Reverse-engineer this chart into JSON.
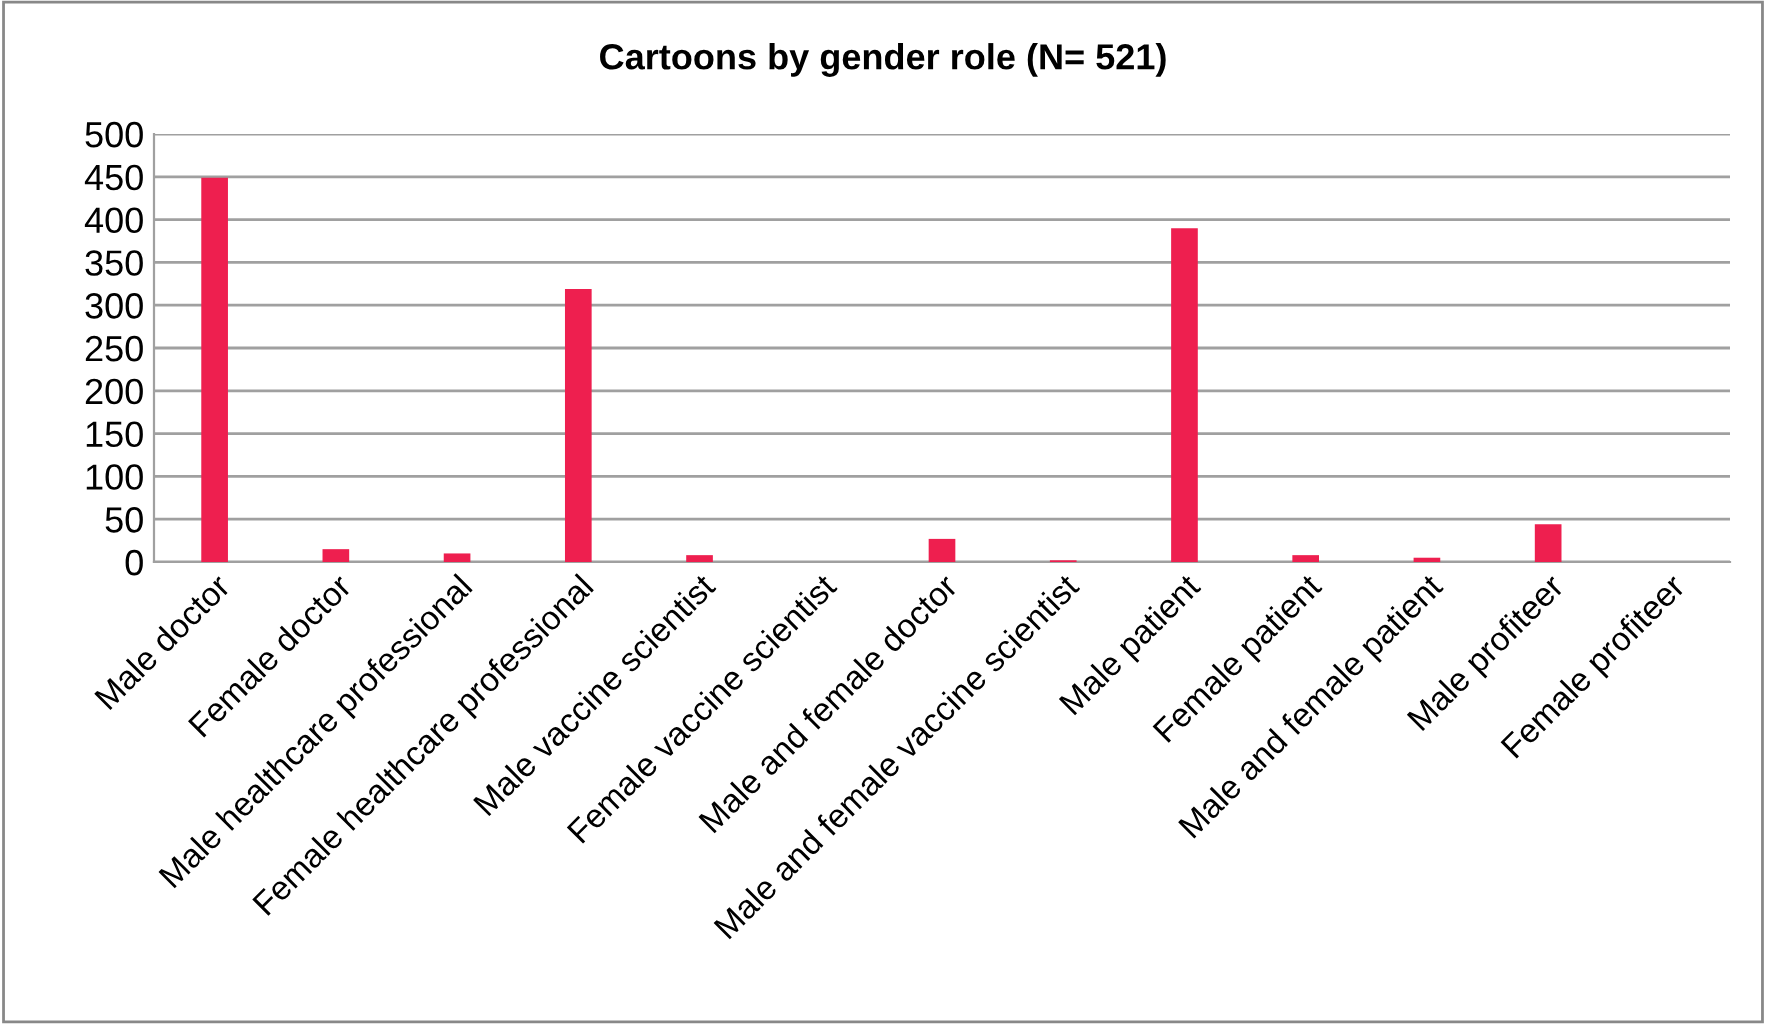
{
  "chart_data": {
    "type": "bar",
    "title": "Cartoons by gender role (N= 521)",
    "categories": [
      "Male doctor",
      "Female doctor",
      "Male healthcare professional",
      "Female healthcare professional",
      "Male vaccine scientist",
      "Female vaccine scientist",
      "Male and female doctor",
      "Male and female vaccine scientist",
      "Male patient",
      "Female patient",
      "Male and female patient",
      "Male profiteer",
      "Female profiteer"
    ],
    "values": [
      449,
      15,
      10,
      319,
      8,
      0,
      27,
      2,
      390,
      8,
      5,
      44,
      0
    ],
    "color": "#ee1f4f",
    "ylim": [
      0,
      500
    ],
    "yticks": [
      0,
      50,
      100,
      150,
      200,
      250,
      300,
      350,
      400,
      450,
      500
    ],
    "grid": "y"
  }
}
